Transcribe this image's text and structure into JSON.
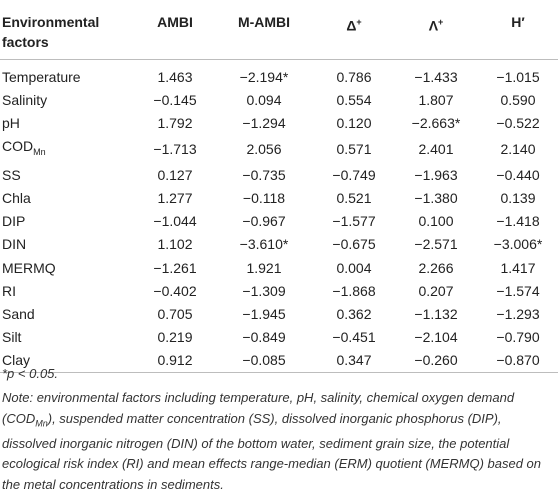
{
  "table": {
    "header": {
      "factor_line1": "Environmental",
      "factor_line2": "factors",
      "ambi": "AMBI",
      "mambi": "M-AMBI",
      "delta": "Δ",
      "delta_sup": "+",
      "lambda": "Λ",
      "lambda_sup": "+",
      "h": "H′"
    },
    "rows": [
      {
        "factor": "Temperature",
        "ambi": "1.463",
        "mambi": "−2.194*",
        "delta": "0.786",
        "lambda": "−1.433",
        "h": "−1.015"
      },
      {
        "factor": "Salinity",
        "ambi": "−0.145",
        "mambi": "0.094",
        "delta": "0.554",
        "lambda": "1.807",
        "h": "0.590"
      },
      {
        "factor": "pH",
        "ambi": "1.792",
        "mambi": "−1.294",
        "delta": "0.120",
        "lambda": "−2.663*",
        "h": "−0.522"
      },
      {
        "factor": "COD",
        "factor_sub": "Mn",
        "ambi": "−1.713",
        "mambi": "2.056",
        "delta": "0.571",
        "lambda": "2.401",
        "h": "2.140"
      },
      {
        "factor": "SS",
        "ambi": "0.127",
        "mambi": "−0.735",
        "delta": "−0.749",
        "lambda": "−1.963",
        "h": "−0.440"
      },
      {
        "factor": "Chla",
        "ambi": "1.277",
        "mambi": "−0.118",
        "delta": "0.521",
        "lambda": "−1.380",
        "h": "0.139"
      },
      {
        "factor": "DIP",
        "ambi": "−1.044",
        "mambi": "−0.967",
        "delta": "−1.577",
        "lambda": "0.100",
        "h": "−1.418"
      },
      {
        "factor": "DIN",
        "ambi": "1.102",
        "mambi": "−3.610*",
        "delta": "−0.675",
        "lambda": "−2.571",
        "h": "−3.006*"
      },
      {
        "factor": "MERMQ",
        "ambi": "−1.261",
        "mambi": "1.921",
        "delta": "0.004",
        "lambda": "2.266",
        "h": "1.417"
      },
      {
        "factor": "RI",
        "ambi": "−0.402",
        "mambi": "−1.309",
        "delta": "−1.868",
        "lambda": "0.207",
        "h": "−1.574"
      },
      {
        "factor": "Sand",
        "ambi": "0.705",
        "mambi": "−1.945",
        "delta": "0.362",
        "lambda": "−1.132",
        "h": "−1.293"
      },
      {
        "factor": "Silt",
        "ambi": "0.219",
        "mambi": "−0.849",
        "delta": "−0.451",
        "lambda": "−2.104",
        "h": "−0.790"
      },
      {
        "factor": "Clay",
        "ambi": "0.912",
        "mambi": "−0.085",
        "delta": "0.347",
        "lambda": "−0.260",
        "h": "−0.870"
      }
    ]
  },
  "footnote": {
    "significance": "*p < 0.05.",
    "note_label": "Note:",
    "note_part1": " environmental factors including temperature, pH, salinity, chemical oxygen demand (COD",
    "note_sub": "Mn",
    "note_part2": "), suspended matter concentration (SS), dissolved inorganic phosphorus (DIP), dissolved inorganic nitrogen (DIN) of the bottom water, sediment grain size, the potential ecological risk index (RI) and mean effects range-median (ERM) quotient (MERMQ) based on the metal concentrations in sediments."
  }
}
